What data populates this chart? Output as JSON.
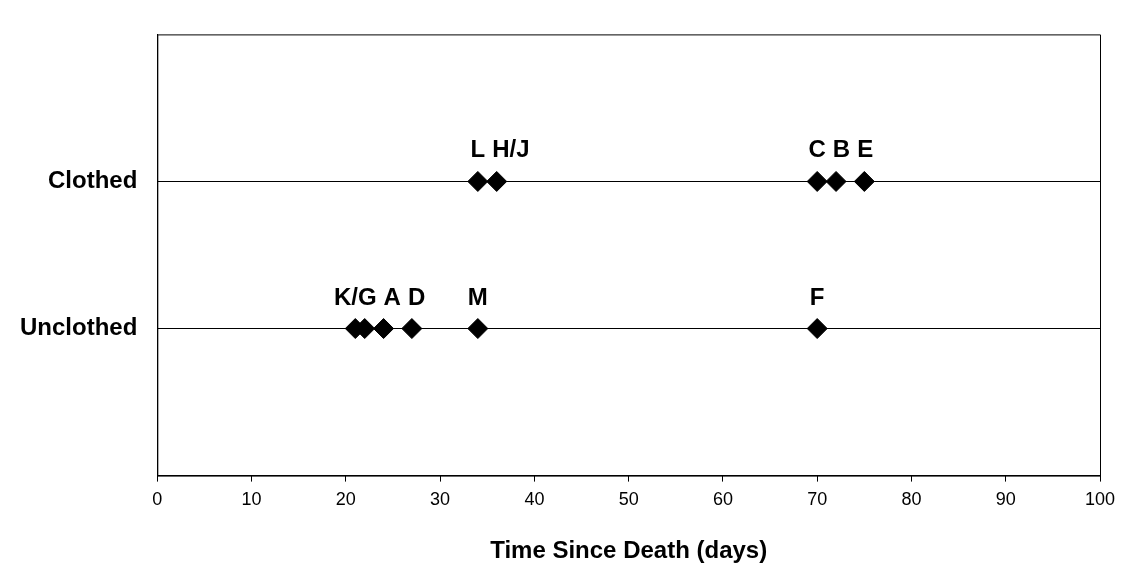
{
  "chart_data": {
    "type": "scatter",
    "orientation": "horizontal",
    "xlabel": "Time Since Death (days)",
    "categories": [
      "Clothed",
      "Unclothed"
    ],
    "series": [
      {
        "color": "#000000",
        "values": [
          34,
          21
        ]
      },
      {
        "color": "#000000",
        "values": [
          36,
          22
        ]
      },
      {
        "color": "#000000",
        "values": [
          70,
          24
        ]
      },
      {
        "color": "#000000",
        "values": [
          72,
          27
        ]
      },
      {
        "color": "#000000",
        "values": [
          75,
          34
        ]
      },
      {
        "color": "#000000",
        "values": [
          null,
          70
        ]
      }
    ],
    "xlim": [
      0,
      100
    ],
    "xticks": [
      0,
      10,
      20,
      30,
      40,
      50,
      60,
      70,
      80,
      90,
      100
    ],
    "grid": "y",
    "legend": false,
    "marker": "diamond",
    "annotations": [
      {
        "text": "L",
        "x": 34,
        "y": "Clothed"
      },
      {
        "text": "H/J",
        "x": 36,
        "y": "Clothed"
      },
      {
        "text": "C",
        "x": 70,
        "y": "Clothed"
      },
      {
        "text": "B",
        "x": 72,
        "y": "Clothed"
      },
      {
        "text": "E",
        "x": 75,
        "y": "Clothed"
      },
      {
        "text": "K/G",
        "x": 21,
        "y": "Unclothed"
      },
      {
        "text": "A",
        "x": 24,
        "y": "Unclothed"
      },
      {
        "text": "D",
        "x": 27,
        "y": "Unclothed"
      },
      {
        "text": "M",
        "x": 34,
        "y": "Unclothed"
      },
      {
        "text": "F",
        "x": 70,
        "y": "Unclothed"
      }
    ]
  }
}
